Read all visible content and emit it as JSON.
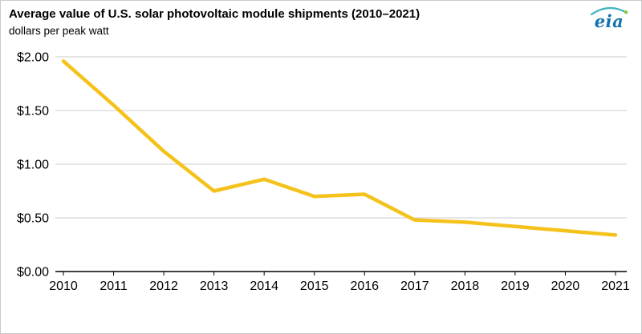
{
  "header": {
    "title": "Average value of U.S. solar photovoltaic module shipments (2010–2021)",
    "subtitle": "dollars per peak watt",
    "logo_text": "eia"
  },
  "chart_data": {
    "type": "line",
    "title": "Average value of U.S. solar photovoltaic module shipments (2010–2021)",
    "ylabel": "dollars per peak watt",
    "xlabel": "",
    "x": [
      2010,
      2011,
      2012,
      2013,
      2014,
      2015,
      2016,
      2017,
      2018,
      2019,
      2020,
      2021
    ],
    "series": [
      {
        "name": "Average value of U.S. solar photovoltaic module shipments",
        "values": [
          1.96,
          1.55,
          1.12,
          0.75,
          0.86,
          0.7,
          0.72,
          0.48,
          0.46,
          0.42,
          0.38,
          0.34
        ]
      }
    ],
    "ylim": [
      0,
      2.0
    ],
    "yticks": [
      0,
      0.5,
      1.0,
      1.5,
      2.0
    ],
    "ytick_labels": [
      "$0.00",
      "$0.50",
      "$1.00",
      "$1.50",
      "$2.00"
    ],
    "xtick_labels": [
      "2010",
      "2011",
      "2012",
      "2013",
      "2014",
      "2015",
      "2016",
      "2017",
      "2018",
      "2019",
      "2020",
      "2021"
    ],
    "grid": true,
    "legend_position": "none",
    "colors": {
      "line": "#F5C21B",
      "gridline": "#cccccc",
      "axis": "#000000",
      "tick_text": "#000000"
    }
  }
}
